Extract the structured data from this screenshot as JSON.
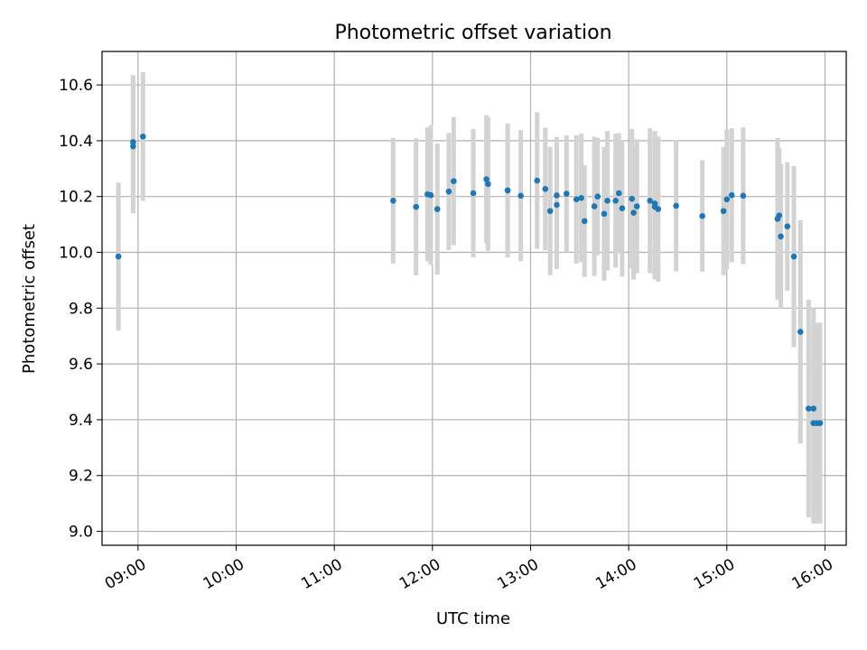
{
  "chart_data": {
    "type": "scatter",
    "title": "Photometric offset variation",
    "xlabel": "UTC time",
    "ylabel": "Photometric offset",
    "xlim": [
      "08:38",
      "16:13"
    ],
    "ylim": [
      8.95,
      10.72
    ],
    "x_ticks": [
      "09:00",
      "10:00",
      "11:00",
      "12:00",
      "13:00",
      "14:00",
      "15:00",
      "16:00"
    ],
    "y_ticks": [
      9.0,
      9.2,
      9.4,
      9.6,
      9.8,
      10.0,
      10.2,
      10.4,
      10.6
    ],
    "grid": true,
    "marker_color": "#1f77b4",
    "errorbar_color": "#d3d3d3",
    "series": [
      {
        "x": [
          "08:48",
          "08:57",
          "08:57",
          "09:03",
          "11:36",
          "11:50",
          "11:57",
          "11:59",
          "12:03",
          "12:10",
          "12:13",
          "12:25",
          "12:33",
          "12:34",
          "12:46",
          "12:46",
          "12:54",
          "13:04",
          "13:09",
          "13:12",
          "13:16",
          "13:16",
          "13:22",
          "13:28",
          "13:31",
          "13:33",
          "13:39",
          "13:41",
          "13:45",
          "13:47",
          "13:52",
          "13:54",
          "13:56",
          "14:02",
          "14:03",
          "14:05",
          "14:13",
          "14:16",
          "14:16",
          "14:18",
          "14:29",
          "14:45",
          "14:58",
          "15:00",
          "15:03",
          "15:10",
          "15:31",
          "15:32",
          "15:33",
          "15:37",
          "15:41",
          "15:45",
          "15:50",
          "15:53",
          "15:53",
          "15:55",
          "15:57"
        ],
        "y": [
          9.985,
          10.38,
          10.395,
          10.415,
          10.185,
          10.163,
          10.208,
          10.205,
          10.155,
          10.218,
          10.255,
          10.212,
          10.262,
          10.245,
          10.222,
          10.222,
          10.203,
          10.257,
          10.227,
          10.148,
          10.17,
          10.204,
          10.21,
          10.19,
          10.195,
          10.112,
          10.165,
          10.2,
          10.138,
          10.185,
          10.185,
          10.212,
          10.158,
          10.192,
          10.142,
          10.165,
          10.185,
          10.175,
          10.163,
          10.155,
          10.167,
          10.13,
          10.148,
          10.19,
          10.205,
          10.203,
          10.12,
          10.132,
          10.057,
          10.093,
          9.985,
          9.715,
          9.44,
          9.388,
          9.44,
          9.388,
          9.388
        ],
        "yerr": [
          0.265,
          0.24,
          0.24,
          0.23,
          0.225,
          0.245,
          0.24,
          0.25,
          0.235,
          0.21,
          0.23,
          0.23,
          0.23,
          0.24,
          0.24,
          0.24,
          0.235,
          0.245,
          0.22,
          0.23,
          0.23,
          0.21,
          0.21,
          0.23,
          0.23,
          0.2,
          0.25,
          0.21,
          0.24,
          0.25,
          0.24,
          0.215,
          0.245,
          0.25,
          0.24,
          0.24,
          0.26,
          0.26,
          0.26,
          0.26,
          0.235,
          0.2,
          0.23,
          0.25,
          0.24,
          0.245,
          0.29,
          0.24,
          0.26,
          0.23,
          0.325,
          0.4,
          0.39,
          0.36,
          0.36,
          0.36,
          0.36
        ]
      }
    ]
  }
}
